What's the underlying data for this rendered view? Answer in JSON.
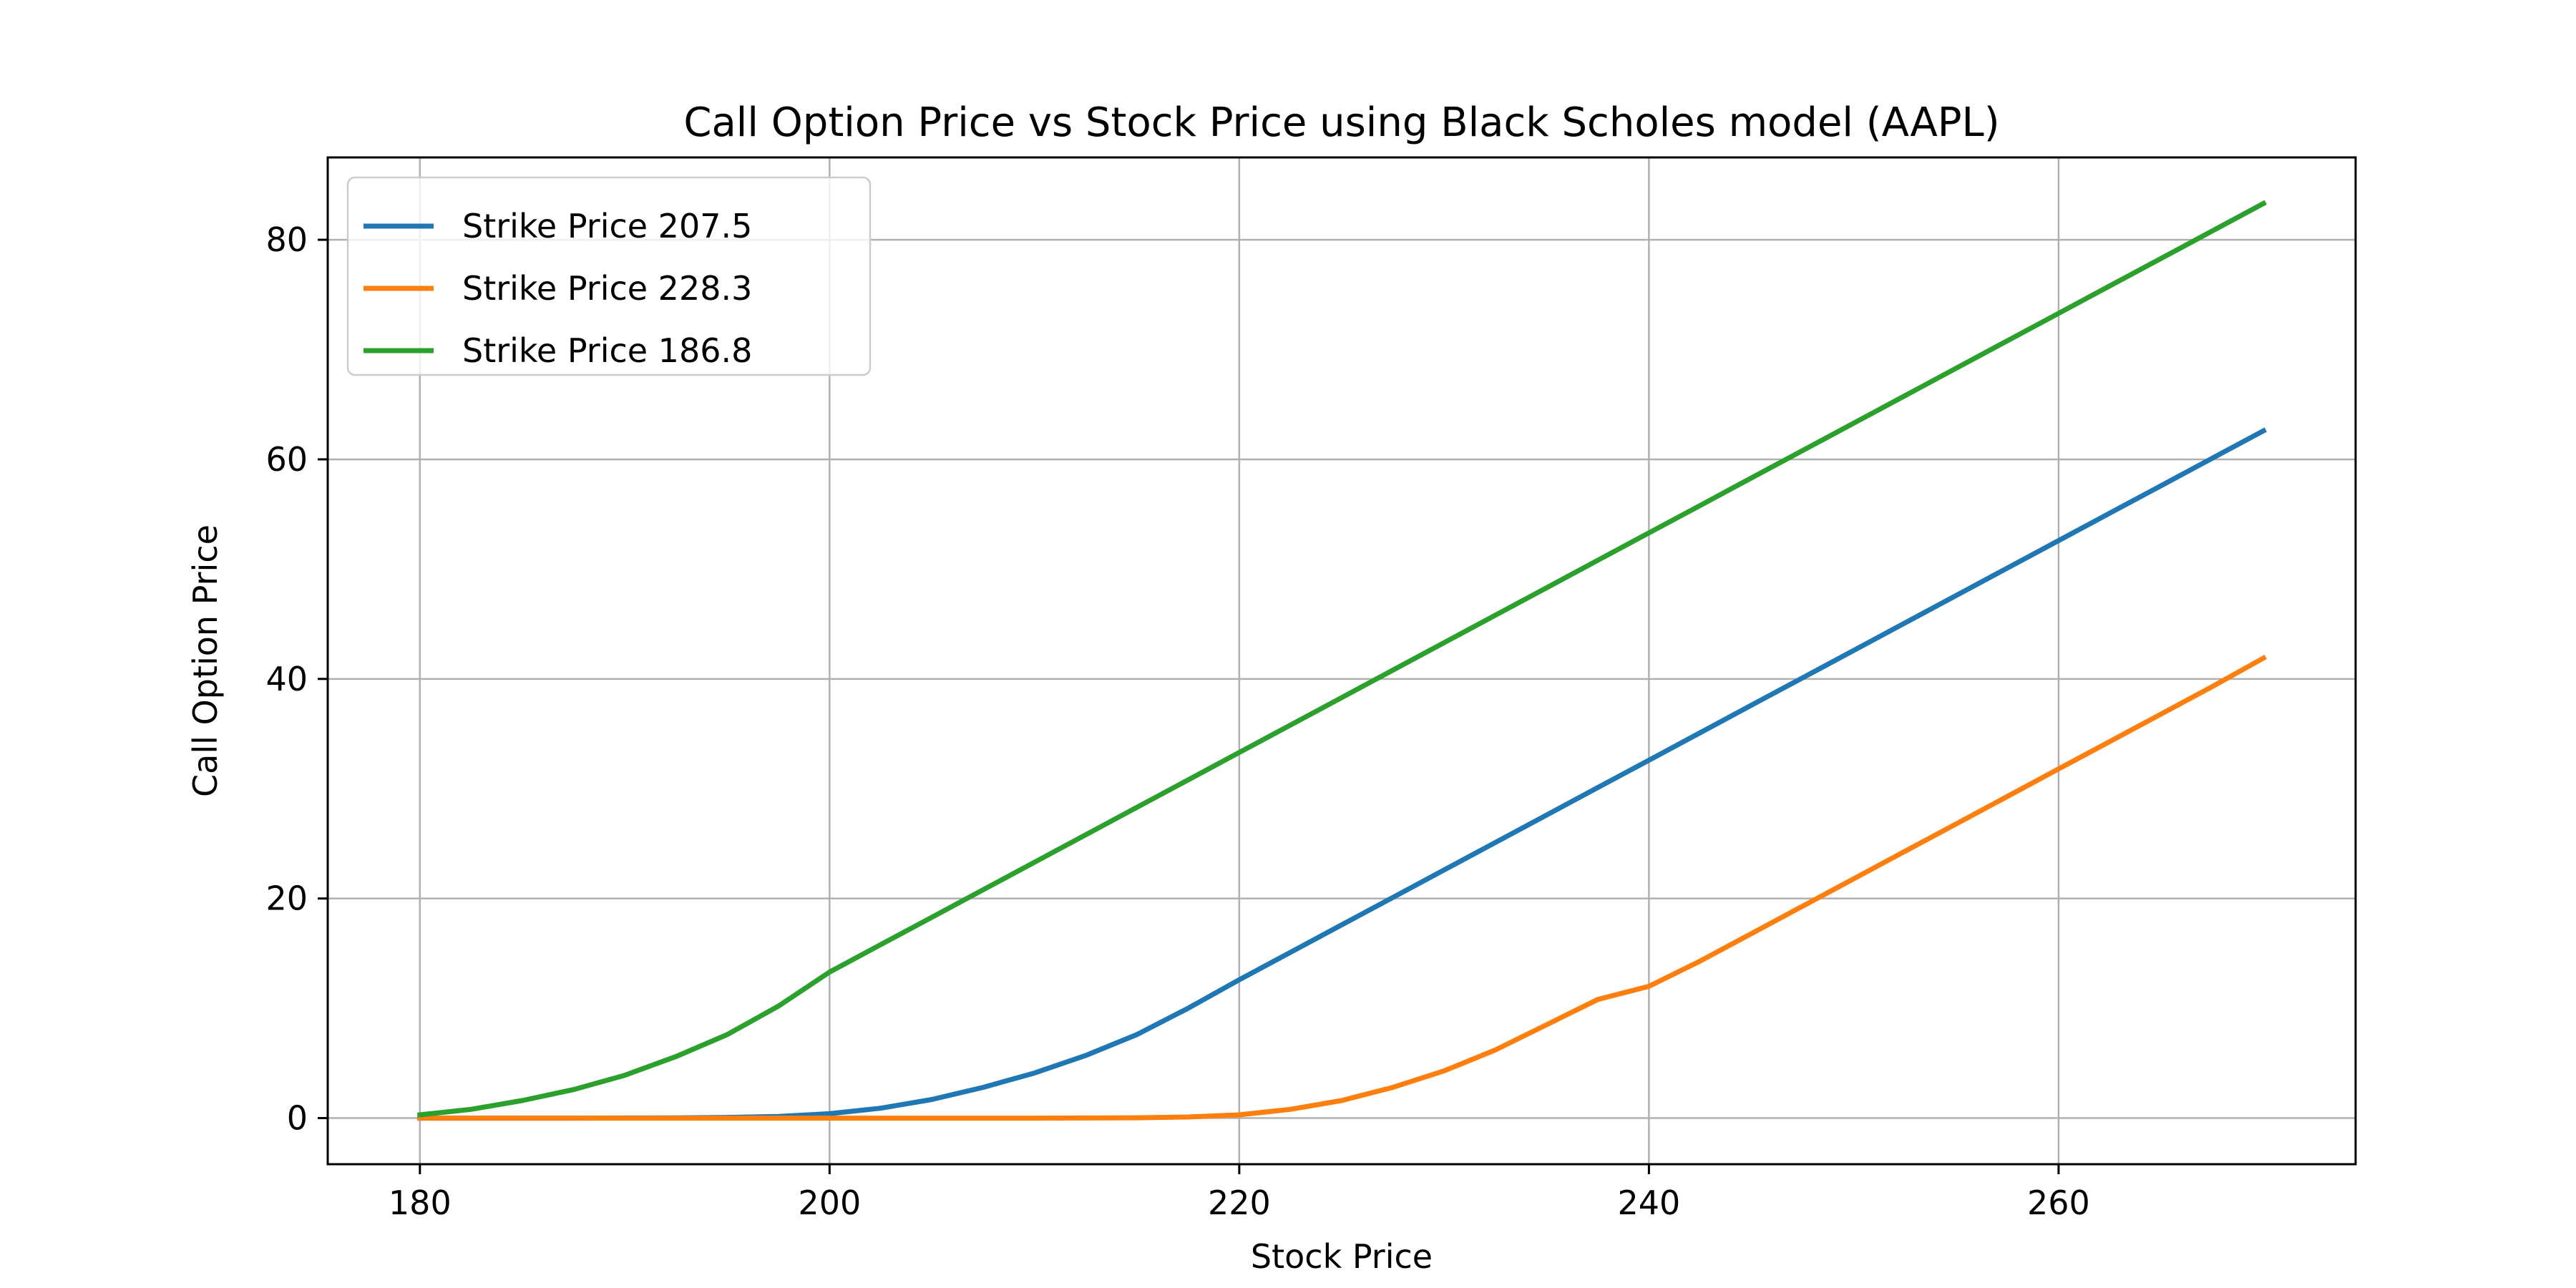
{
  "chart_data": {
    "type": "line",
    "title": "Call Option Price vs Stock Price using Black Scholes model (AAPL)",
    "xlabel": "Stock Price",
    "ylabel": "Call Option Price",
    "xlim": [
      175.5,
      274.5
    ],
    "ylim": [
      -4.2,
      87.5
    ],
    "xticks": [
      180,
      200,
      220,
      240,
      260
    ],
    "yticks": [
      0,
      20,
      40,
      60,
      80
    ],
    "grid": true,
    "legend": {
      "placement": "top-left"
    },
    "x": [
      180,
      182.5,
      185,
      187.5,
      190,
      192.5,
      195,
      197.5,
      200,
      202.5,
      205,
      207.5,
      210,
      212.5,
      215,
      217.5,
      220,
      222.5,
      225,
      227.5,
      230,
      232.5,
      235,
      237.5,
      240,
      242.5,
      245,
      247.5,
      250,
      252.5,
      255,
      257.5,
      260,
      262.5,
      265,
      267.5,
      270
    ],
    "series": [
      {
        "name": "Strike Price 207.5",
        "color": "#1f77b4",
        "values": [
          0.0,
          0.0,
          0.0,
          0.0,
          0.01,
          0.02,
          0.06,
          0.15,
          0.4,
          0.9,
          1.7,
          2.8,
          4.1,
          5.7,
          7.6,
          10.0,
          12.6,
          15.1,
          17.6,
          20.1,
          22.6,
          25.1,
          27.6,
          30.1,
          32.6,
          35.1,
          37.6,
          40.1,
          42.6,
          45.1,
          47.6,
          50.1,
          52.6,
          55.1,
          57.6,
          60.1,
          62.6
        ]
      },
      {
        "name": "Strike Price 228.3",
        "color": "#ff7f0e",
        "values": [
          0.0,
          0.0,
          0.0,
          0.0,
          0.0,
          0.0,
          0.0,
          0.0,
          0.0,
          0.0,
          0.0,
          0.0,
          0.0,
          0.01,
          0.03,
          0.1,
          0.3,
          0.8,
          1.6,
          2.8,
          4.3,
          6.2,
          8.5,
          10.8,
          12.0,
          14.3,
          16.8,
          19.3,
          21.8,
          24.3,
          26.8,
          29.3,
          31.8,
          34.3,
          36.8,
          39.3,
          41.9
        ]
      },
      {
        "name": "Strike Price 186.8",
        "color": "#2ca02c",
        "values": [
          0.3,
          0.8,
          1.6,
          2.6,
          3.9,
          5.6,
          7.6,
          10.2,
          13.3,
          15.8,
          18.3,
          20.8,
          23.3,
          25.8,
          28.3,
          30.8,
          33.3,
          35.8,
          38.3,
          40.8,
          43.3,
          45.8,
          48.3,
          50.8,
          53.3,
          55.8,
          58.3,
          60.8,
          63.3,
          65.8,
          68.3,
          70.8,
          73.3,
          75.8,
          78.3,
          80.8,
          83.3
        ]
      }
    ]
  }
}
